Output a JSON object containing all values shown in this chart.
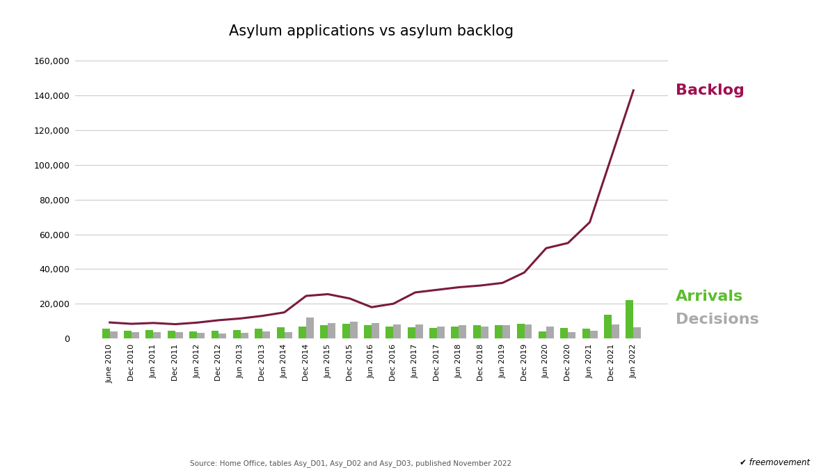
{
  "title": "Asylum applications vs asylum backlog",
  "source": "Source: Home Office, tables Asy_D01, Asy_D02 and Asy_D03, published November 2022",
  "backlog_color": "#7B1A40",
  "arrivals_color": "#5BBD2F",
  "decisions_color": "#AAAAAA",
  "annotation_backlog_color": "#A01050",
  "annotation_arrivals_color": "#5BBD2F",
  "annotation_decisions_color": "#AAAAAA",
  "ylim": [
    0,
    168000
  ],
  "yticks": [
    0,
    20000,
    40000,
    60000,
    80000,
    100000,
    120000,
    140000,
    160000
  ],
  "labels": [
    "June 2010",
    "Dec 2010",
    "Jun 2011",
    "Dec 2011",
    "Jun 2012",
    "Dec 2012",
    "Jun 2013",
    "Dec 2013",
    "Jun 2014",
    "Dec 2014",
    "Jun 2015",
    "Dec 2015",
    "Jun 2016",
    "Dec 2016",
    "Jun 2017",
    "Dec 2017",
    "Jun 2018",
    "Dec 2018",
    "Jun 2019",
    "Dec 2019",
    "Jun 2020",
    "Dec 2020",
    "Jun 2021",
    "Dec 2021",
    "Jun 2022"
  ],
  "backlog": [
    9200,
    8400,
    8900,
    8200,
    9100,
    10500,
    11500,
    13000,
    15000,
    24500,
    25500,
    23000,
    18000,
    20000,
    26500,
    28000,
    29500,
    30500,
    32000,
    38000,
    52000,
    55000,
    67000,
    105000,
    143000
  ],
  "arrivals": [
    5500,
    4500,
    4800,
    4600,
    4200,
    4600,
    5000,
    5500,
    6500,
    6800,
    7500,
    8500,
    7500,
    7000,
    6500,
    6000,
    7000,
    7500,
    7800,
    8500,
    4000,
    6000,
    5500,
    13500,
    22000
  ],
  "decisions": [
    4200,
    3800,
    3500,
    3500,
    3200,
    3000,
    3200,
    4000,
    3800,
    12000,
    9000,
    9500,
    9000,
    8000,
    8000,
    7000,
    7500,
    7000,
    7500,
    8000,
    7000,
    3500,
    4500,
    8000,
    6500
  ]
}
